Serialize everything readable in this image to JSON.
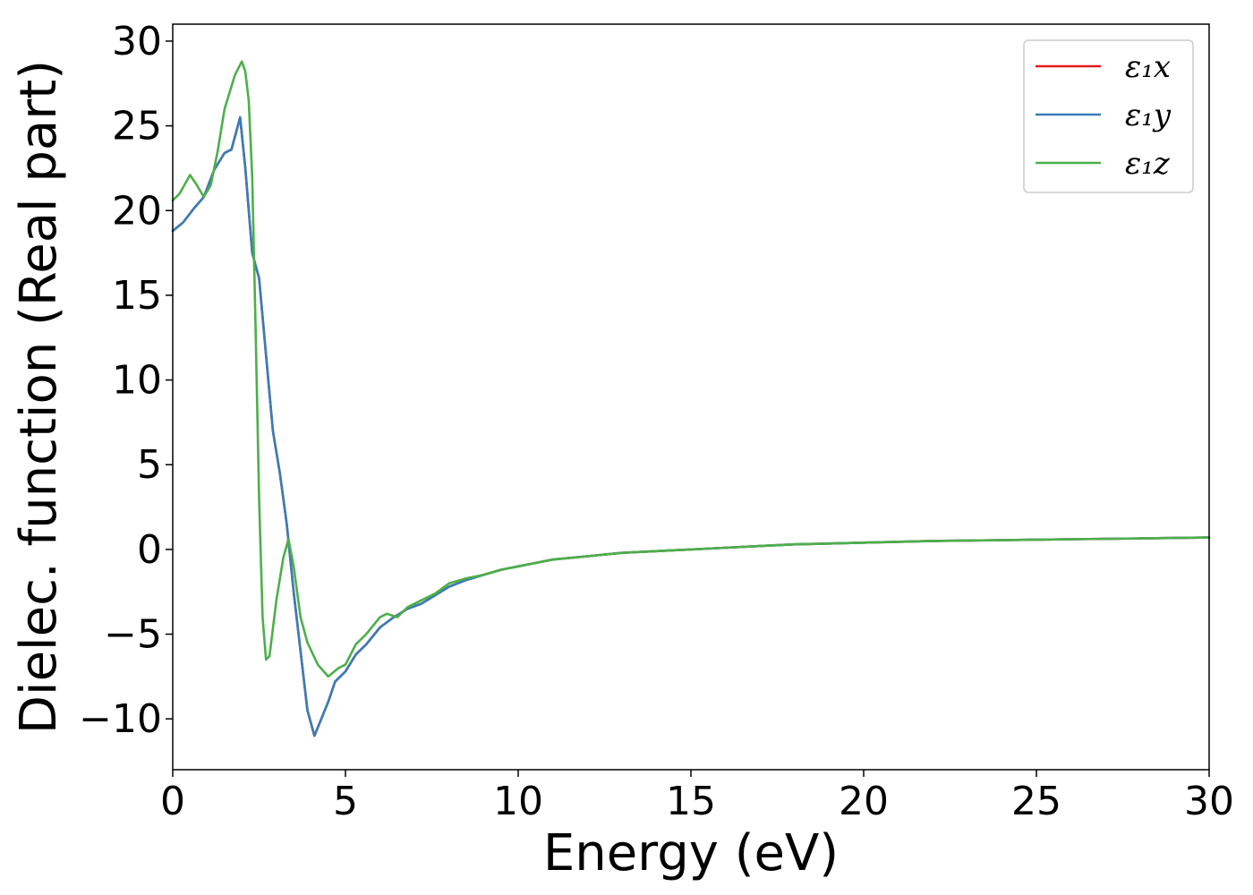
{
  "chart_data": {
    "type": "line",
    "title": "",
    "xlabel": "Energy (eV)",
    "ylabel": "Dielec. function (Real part)",
    "xlim": [
      0,
      30
    ],
    "ylim": [
      -13,
      31
    ],
    "xticks": [
      0,
      5,
      10,
      15,
      20,
      25,
      30
    ],
    "xtick_labels": [
      "0",
      "5",
      "10",
      "15",
      "20",
      "25",
      "30"
    ],
    "yticks": [
      -10,
      -5,
      0,
      5,
      10,
      15,
      20,
      25,
      30
    ],
    "ytick_labels": [
      "−10",
      "−5",
      "0",
      "5",
      "10",
      "15",
      "20",
      "25",
      "30"
    ],
    "grid": false,
    "legend_position": "top-right",
    "series": [
      {
        "name": "ε₁x",
        "color": "#e41a1c",
        "x": [
          0,
          0.3,
          0.6,
          0.9,
          1.2,
          1.5,
          1.7,
          1.95,
          2.1,
          2.3,
          2.5,
          2.7,
          2.9,
          3.1,
          3.3,
          3.5,
          3.7,
          3.9,
          4.1,
          4.3,
          4.5,
          4.7,
          5.0,
          5.3,
          5.6,
          6.0,
          6.4,
          6.8,
          7.2,
          7.6,
          8.0,
          8.5,
          9.0,
          9.5,
          10.0,
          10.5,
          11.0,
          12.0,
          13.0,
          14.0,
          15.0,
          16.0,
          17.0,
          18.0,
          19.0,
          20.0,
          22.0,
          24.0,
          26.0,
          28.0,
          30.0
        ],
        "y": [
          18.8,
          19.3,
          20.1,
          20.8,
          22.4,
          23.4,
          23.6,
          25.5,
          22.5,
          17.5,
          16.0,
          11.5,
          7.0,
          4.5,
          1.5,
          -2.5,
          -6.0,
          -9.5,
          -11.0,
          -10.0,
          -9.0,
          -7.8,
          -7.2,
          -6.2,
          -5.6,
          -4.6,
          -4.0,
          -3.5,
          -3.2,
          -2.7,
          -2.2,
          -1.8,
          -1.5,
          -1.2,
          -1.0,
          -0.8,
          -0.6,
          -0.4,
          -0.2,
          -0.1,
          0.0,
          0.1,
          0.2,
          0.3,
          0.35,
          0.4,
          0.5,
          0.55,
          0.6,
          0.65,
          0.7
        ]
      },
      {
        "name": "ε₁y",
        "color": "#377eb8",
        "x": [
          0,
          0.3,
          0.6,
          0.9,
          1.2,
          1.5,
          1.7,
          1.95,
          2.1,
          2.3,
          2.5,
          2.7,
          2.9,
          3.1,
          3.3,
          3.5,
          3.7,
          3.9,
          4.1,
          4.3,
          4.5,
          4.7,
          5.0,
          5.3,
          5.6,
          6.0,
          6.4,
          6.8,
          7.2,
          7.6,
          8.0,
          8.5,
          9.0,
          9.5,
          10.0,
          10.5,
          11.0,
          12.0,
          13.0,
          14.0,
          15.0,
          16.0,
          17.0,
          18.0,
          19.0,
          20.0,
          22.0,
          24.0,
          26.0,
          28.0,
          30.0
        ],
        "y": [
          18.8,
          19.3,
          20.1,
          20.8,
          22.4,
          23.4,
          23.6,
          25.5,
          22.5,
          17.5,
          16.0,
          11.5,
          7.0,
          4.5,
          1.5,
          -2.5,
          -6.0,
          -9.5,
          -11.0,
          -10.0,
          -9.0,
          -7.8,
          -7.2,
          -6.2,
          -5.6,
          -4.6,
          -4.0,
          -3.5,
          -3.2,
          -2.7,
          -2.2,
          -1.8,
          -1.5,
          -1.2,
          -1.0,
          -0.8,
          -0.6,
          -0.4,
          -0.2,
          -0.1,
          0.0,
          0.1,
          0.2,
          0.3,
          0.35,
          0.4,
          0.5,
          0.55,
          0.6,
          0.65,
          0.7
        ]
      },
      {
        "name": "ε₁z",
        "color": "#4daf4a",
        "x": [
          0,
          0.2,
          0.5,
          0.7,
          0.9,
          1.1,
          1.3,
          1.5,
          1.8,
          2.0,
          2.1,
          2.2,
          2.3,
          2.4,
          2.5,
          2.6,
          2.7,
          2.8,
          3.0,
          3.2,
          3.35,
          3.5,
          3.7,
          3.9,
          4.2,
          4.5,
          4.8,
          5.0,
          5.3,
          5.6,
          6.0,
          6.2,
          6.5,
          6.8,
          7.2,
          7.6,
          8.0,
          8.5,
          9.0,
          9.5,
          10.0,
          10.5,
          11.0,
          12.0,
          13.0,
          14.0,
          15.0,
          16.0,
          17.0,
          18.0,
          19.0,
          20.0,
          22.0,
          24.0,
          26.0,
          28.0,
          30.0
        ],
        "y": [
          20.6,
          21.0,
          22.1,
          21.5,
          20.8,
          21.5,
          23.5,
          26.0,
          28.0,
          28.8,
          28.2,
          26.5,
          22.0,
          13.0,
          3.0,
          -4.0,
          -6.5,
          -6.3,
          -3.0,
          -0.5,
          0.6,
          -1.0,
          -4.0,
          -5.5,
          -6.8,
          -7.5,
          -7.0,
          -6.8,
          -5.6,
          -5.0,
          -4.0,
          -3.8,
          -4.0,
          -3.4,
          -3.0,
          -2.6,
          -2.0,
          -1.7,
          -1.5,
          -1.2,
          -1.0,
          -0.8,
          -0.6,
          -0.4,
          -0.2,
          -0.1,
          0.0,
          0.1,
          0.2,
          0.3,
          0.35,
          0.4,
          0.5,
          0.55,
          0.6,
          0.65,
          0.7
        ]
      }
    ]
  }
}
